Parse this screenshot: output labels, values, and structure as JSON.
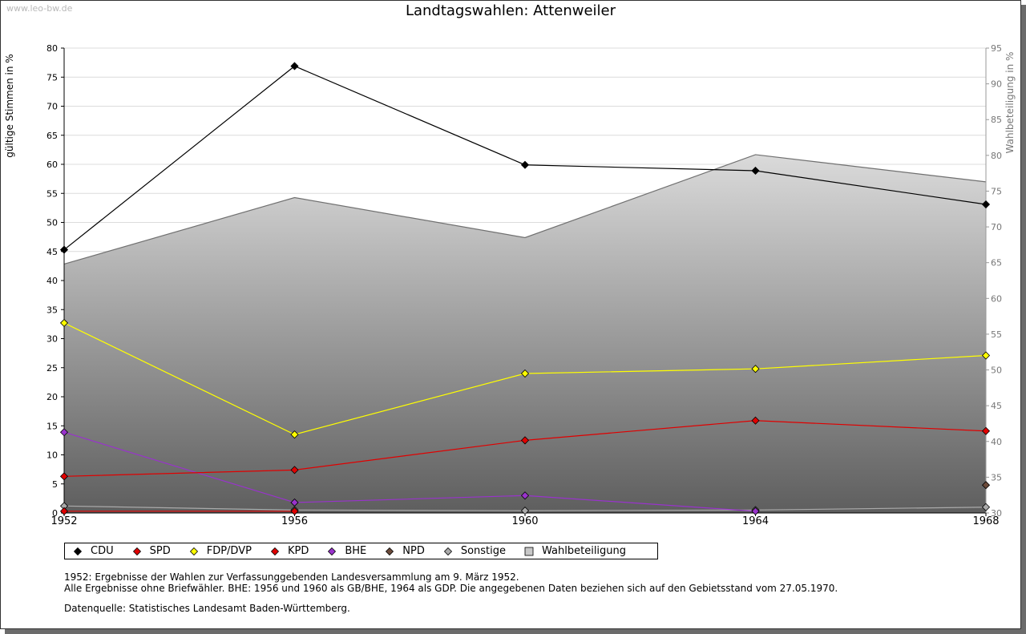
{
  "watermark": "www.leo-bw.de",
  "chart_data": {
    "type": "line",
    "title": "Landtagswahlen: Attenweiler",
    "ylabel": "gültige Stimmen in %",
    "y2label": "Wahlbeteiligung in %",
    "xlabel": "",
    "x": [
      "1952",
      "1956",
      "1960",
      "1964",
      "1968"
    ],
    "ylim": [
      0,
      80
    ],
    "yticks": [
      0,
      5,
      10,
      15,
      20,
      25,
      30,
      35,
      40,
      45,
      50,
      55,
      60,
      65,
      70,
      75,
      80
    ],
    "y2lim": [
      30,
      95
    ],
    "y2ticks": [
      30,
      35,
      40,
      45,
      50,
      55,
      60,
      65,
      70,
      75,
      80,
      85,
      90,
      95
    ],
    "grid": true,
    "legend_placement": "bottom",
    "series": [
      {
        "name": "CDU",
        "color": "#000000",
        "values": [
          45.3,
          76.9,
          59.9,
          58.9,
          53.1
        ]
      },
      {
        "name": "SPD",
        "color": "#e00000",
        "values": [
          6.3,
          7.4,
          12.5,
          15.9,
          14.1
        ]
      },
      {
        "name": "FDP/DVP",
        "color": "#ffff00",
        "values": [
          32.7,
          13.5,
          24.0,
          24.8,
          27.1
        ]
      },
      {
        "name": "KPD",
        "color": "#e00000",
        "values": [
          0.3,
          0.3,
          null,
          null,
          null
        ]
      },
      {
        "name": "BHE",
        "color": "#9933cc",
        "values": [
          13.9,
          1.8,
          3.0,
          0.3,
          null
        ]
      },
      {
        "name": "NPD",
        "color": "#6b4a3a",
        "values": [
          null,
          null,
          null,
          null,
          4.8
        ]
      },
      {
        "name": "Sonstige",
        "color": "#aaaaaa",
        "values": [
          1.2,
          0.5,
          0.4,
          0.5,
          1.0
        ]
      }
    ],
    "area_series": {
      "name": "Wahlbeteiligung",
      "axis": "right",
      "values": [
        64.8,
        74.1,
        68.5,
        80.1,
        76.3
      ]
    }
  },
  "notes": [
    "1952: Ergebnisse der Wahlen zur Verfassunggebenden Landesversammlung am 9. März 1952.",
    "Alle Ergebnisse ohne Briefwähler. BHE: 1956 und 1960 als GB/BHE, 1964 als GDP. Die angegebenen Daten beziehen sich auf den Gebietsstand vom 27.05.1970."
  ],
  "source": "Datenquelle: Statistisches Landesamt Baden-Württemberg."
}
